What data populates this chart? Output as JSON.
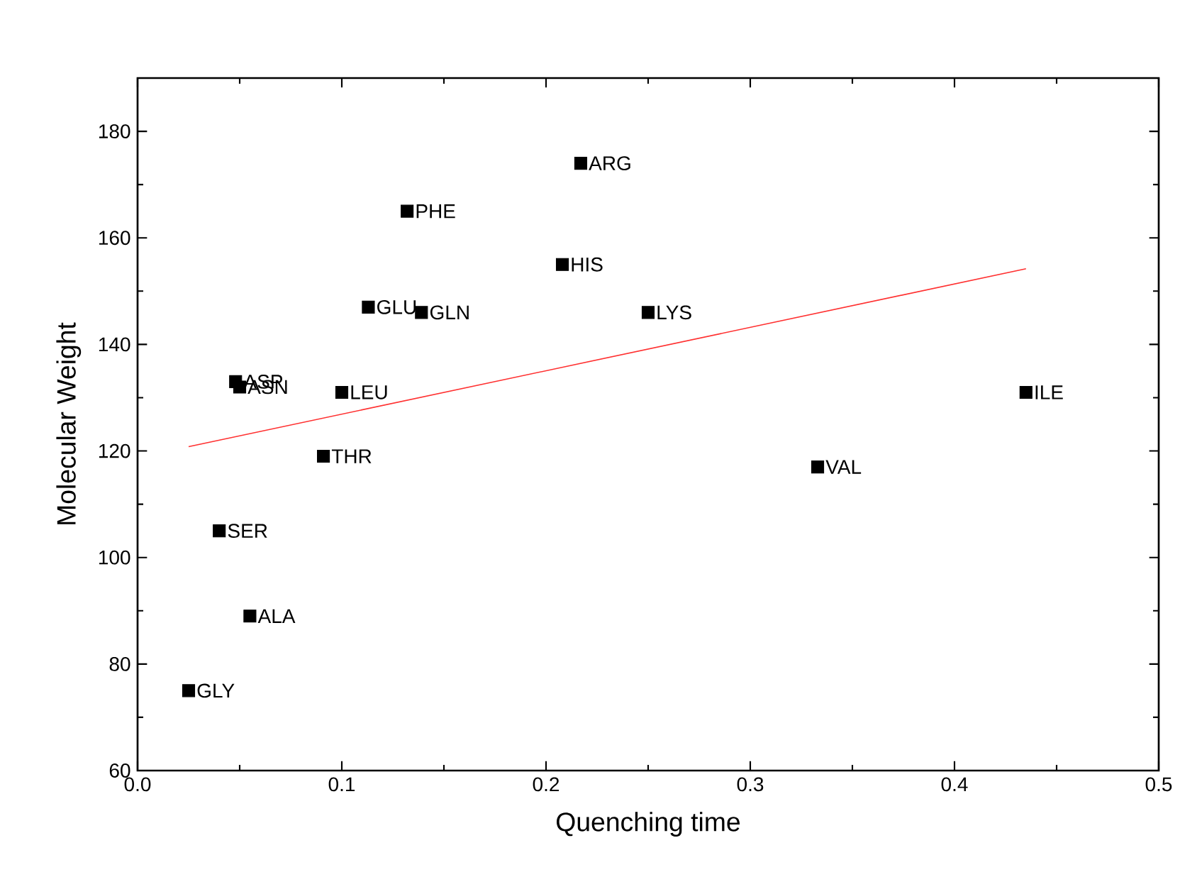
{
  "chart_data": {
    "type": "scatter",
    "xlabel": "Quenching time",
    "ylabel": "Molecular Weight",
    "xlim": [
      0,
      0.5
    ],
    "ylim": [
      60,
      190
    ],
    "xticks": [
      {
        "value": 0,
        "label": "0.0"
      },
      {
        "value": 0.1,
        "label": "0.1"
      },
      {
        "value": 0.2,
        "label": "0.2"
      },
      {
        "value": 0.3,
        "label": "0.3"
      },
      {
        "value": 0.4,
        "label": "0.4"
      },
      {
        "value": 0.5,
        "label": "0.5"
      }
    ],
    "yticks": [
      60,
      80,
      100,
      120,
      140,
      160,
      180
    ],
    "series": [
      {
        "marker": "square",
        "color": "#000000",
        "x": [
          0.025,
          0.04,
          0.055,
          0.048,
          0.05,
          0.091,
          0.1,
          0.113,
          0.139,
          0.132,
          0.208,
          0.217,
          0.25,
          0.333,
          0.435
        ],
        "values": [
          75,
          105,
          89,
          133,
          132,
          119,
          131,
          147,
          146,
          165,
          155,
          174,
          146,
          117,
          131
        ]
      },
      {
        "type": "line",
        "marker": "none",
        "color": "#ff3030",
        "line_style": "solid",
        "x": [
          0.025,
          0.435
        ],
        "values": [
          120.8,
          154.2
        ]
      }
    ],
    "annotations": [
      {
        "text": "GLY",
        "x": 0.025,
        "y": 75
      },
      {
        "text": "SER",
        "x": 0.04,
        "y": 105
      },
      {
        "text": "ALA",
        "x": 0.055,
        "y": 89
      },
      {
        "text": "ASP",
        "x": 0.048,
        "y": 133
      },
      {
        "text": "ASN",
        "x": 0.05,
        "y": 132
      },
      {
        "text": "THR",
        "x": 0.091,
        "y": 119
      },
      {
        "text": "LEU",
        "x": 0.1,
        "y": 131
      },
      {
        "text": "GLU",
        "x": 0.113,
        "y": 147
      },
      {
        "text": "GLN",
        "x": 0.139,
        "y": 146
      },
      {
        "text": "PHE",
        "x": 0.132,
        "y": 165
      },
      {
        "text": "HIS",
        "x": 0.208,
        "y": 155
      },
      {
        "text": "ARG",
        "x": 0.217,
        "y": 174
      },
      {
        "text": "LYS",
        "x": 0.25,
        "y": 146
      },
      {
        "text": "VAL",
        "x": 0.333,
        "y": 117
      },
      {
        "text": "ILE",
        "x": 0.435,
        "y": 131
      }
    ]
  }
}
